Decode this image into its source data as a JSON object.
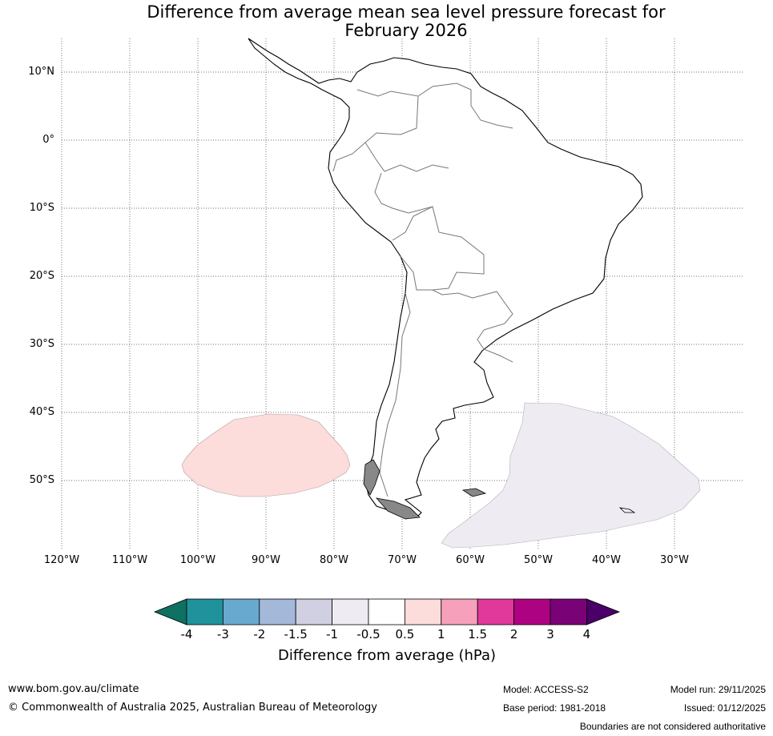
{
  "title_line1": "Difference from average mean sea level pressure forecast for",
  "title_line2": "February 2026",
  "lat_labels": [
    "10°N",
    "0°",
    "10°S",
    "20°S",
    "30°S",
    "40°S",
    "50°S"
  ],
  "lon_labels": [
    "120°W",
    "110°W",
    "100°W",
    "90°W",
    "80°W",
    "70°W",
    "60°W",
    "50°W",
    "40°W",
    "30°W"
  ],
  "colorbar": {
    "ticks": [
      "-4",
      "-3",
      "-2",
      "-1.5",
      "-1",
      "-0.5",
      "0.5",
      "1",
      "1.5",
      "2",
      "3",
      "4"
    ],
    "colors": [
      "#0e7162",
      "#1f929b",
      "#68a9d0",
      "#a4b8da",
      "#d0d0e2",
      "#efebf2",
      "#ffffff",
      "#fddcdc",
      "#f6a0bb",
      "#e0399b",
      "#ad0281",
      "#7a0277",
      "#4a0068"
    ],
    "label": "Difference from average (hPa)"
  },
  "anomaly_colors": {
    "positive_0_5_to_1": "#fddcdc",
    "negative_0_5_to_1": "#efebf2"
  },
  "footer": {
    "website": "www.bom.gov.au/climate",
    "copyright": "© Commonwealth of Australia 2025, Australian Bureau of Meteorology",
    "model": "Model: ACCESS-S2",
    "base_period": "Base period: 1981-2018",
    "model_run": "Model run: 29/11/2025",
    "issued": "Issued: 01/12/2025",
    "disclaimer": "Boundaries are not considered authoritative"
  }
}
